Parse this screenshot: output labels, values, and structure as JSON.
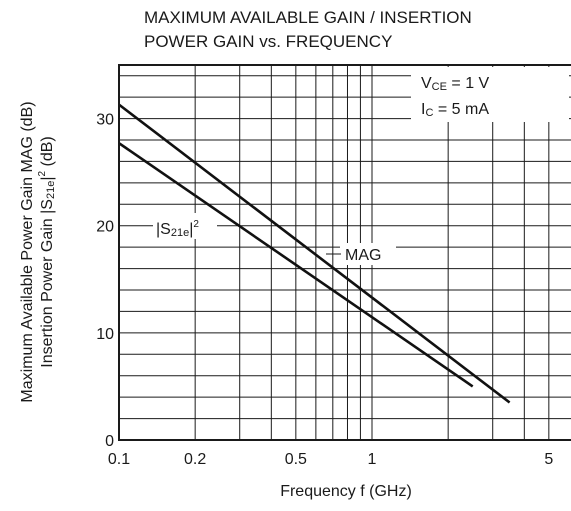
{
  "chart_data": {
    "type": "line",
    "title_lines": [
      "MAXIMUM AVAILABLE GAIN / INSERTION",
      "POWER GAIN vs. FREQUENCY"
    ],
    "xlabel": "Frequency f (GHz)",
    "ylabel_lines": {
      "line1": "Maximum Available Power Gain MAG (dB)",
      "line2": {
        "pre": "Insertion Power Gain |S",
        "sub": "21e",
        "mid": "|",
        "sup": "2",
        "post": " (dB)"
      }
    },
    "x_scale": "log",
    "xlim": [
      0.1,
      6
    ],
    "ylim": [
      0,
      35
    ],
    "x_tick_labels": [
      {
        "value": 0.1,
        "label": "0.1"
      },
      {
        "value": 0.2,
        "label": "0.2"
      },
      {
        "value": 0.5,
        "label": "0.5"
      },
      {
        "value": 1,
        "label": "1"
      },
      {
        "value": 5,
        "label": "5"
      }
    ],
    "y_tick_labels": [
      {
        "value": 0,
        "label": "0"
      },
      {
        "value": 10,
        "label": "10"
      },
      {
        "value": 20,
        "label": "20"
      },
      {
        "value": 30,
        "label": "30"
      }
    ],
    "grid": true,
    "conditions": {
      "vce": {
        "main": "V",
        "sub": "CE",
        "rest": " = 1 V"
      },
      "ic": {
        "main": "I",
        "sub": "C",
        "rest": " = 5 mA"
      }
    },
    "series": [
      {
        "name": "MAG",
        "label": "MAG",
        "x": [
          0.1,
          3.5
        ],
        "y": [
          31.3,
          3.5
        ]
      },
      {
        "name": "|S21e|²",
        "label": {
          "pre": "|S",
          "sub": "21e",
          "mid": "|",
          "sup": "2"
        },
        "x": [
          0.1,
          2.5
        ],
        "y": [
          27.7,
          5.0
        ]
      }
    ]
  }
}
